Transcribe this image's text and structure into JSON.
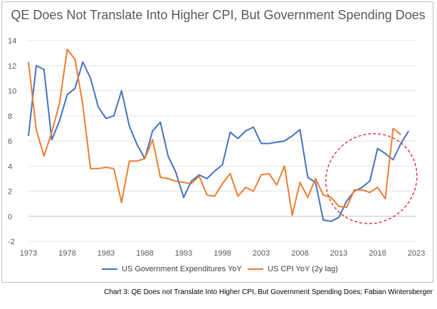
{
  "chart_data": {
    "type": "line",
    "title": "QE Does Not Translate Into Higher CPI, But Government Spending Does",
    "xlabel": "",
    "ylabel": "",
    "xlim": [
      1973,
      2023
    ],
    "ylim": [
      -2,
      14
    ],
    "x_ticks": [
      "1973",
      "1978",
      "1983",
      "1988",
      "1993",
      "1998",
      "2003",
      "2008",
      "2013",
      "2018",
      "2023"
    ],
    "y_ticks": [
      "-2",
      "0",
      "2",
      "4",
      "6",
      "8",
      "10",
      "12",
      "14"
    ],
    "grid": true,
    "legend_position": "bottom",
    "series": [
      {
        "name": "US Government Expenditures YoY",
        "color": "#4472c4",
        "x": [
          1973,
          1974,
          1975,
          1976,
          1977,
          1978,
          1979,
          1980,
          1981,
          1982,
          1983,
          1984,
          1985,
          1986,
          1987,
          1988,
          1989,
          1990,
          1991,
          1992,
          1993,
          1994,
          1995,
          1996,
          1997,
          1998,
          1999,
          2000,
          2001,
          2002,
          2003,
          2004,
          2005,
          2006,
          2007,
          2008,
          2009,
          2010,
          2011,
          2012,
          2013,
          2014,
          2015,
          2016,
          2017,
          2018,
          2019,
          2020,
          2021,
          2022
        ],
        "values": [
          6.4,
          12.0,
          11.7,
          6.1,
          7.6,
          9.7,
          10.2,
          12.3,
          11.0,
          8.7,
          7.8,
          8.0,
          10.0,
          7.2,
          5.7,
          4.6,
          6.8,
          7.5,
          4.8,
          3.5,
          1.5,
          2.8,
          3.3,
          3.0,
          3.6,
          4.1,
          6.7,
          6.2,
          6.8,
          7.1,
          5.8,
          5.8,
          5.9,
          6.0,
          6.4,
          6.9,
          3.1,
          2.7,
          -0.3,
          -0.4,
          -0.1,
          1.2,
          2.0,
          2.3,
          2.8,
          5.4,
          5.0,
          4.5,
          5.8,
          6.8
        ]
      },
      {
        "name": "US CPI YoY (2y lag)",
        "color": "#ed7d31",
        "x": [
          1973,
          1974,
          1975,
          1976,
          1977,
          1978,
          1979,
          1980,
          1981,
          1982,
          1983,
          1984,
          1985,
          1986,
          1987,
          1988,
          1989,
          1990,
          1991,
          1992,
          1993,
          1994,
          1995,
          1996,
          1997,
          1998,
          1999,
          2000,
          2001,
          2002,
          2003,
          2004,
          2005,
          2006,
          2007,
          2008,
          2009,
          2010,
          2011,
          2012,
          2013,
          2014,
          2015,
          2016,
          2017,
          2018,
          2019,
          2020,
          2021,
          2022
        ],
        "values": [
          12.3,
          6.9,
          4.8,
          6.7,
          9.0,
          13.3,
          12.5,
          8.9,
          3.8,
          3.8,
          3.9,
          3.8,
          1.1,
          4.4,
          4.4,
          4.6,
          6.1,
          3.1,
          3.0,
          2.8,
          2.7,
          2.6,
          3.2,
          1.7,
          1.6,
          2.6,
          3.4,
          1.6,
          2.3,
          2.0,
          3.3,
          3.4,
          2.5,
          4.0,
          0.1,
          2.7,
          1.5,
          3.0,
          1.7,
          1.5,
          0.8,
          0.7,
          2.1,
          2.1,
          1.9,
          2.3,
          1.4,
          7.0,
          6.5,
          null
        ]
      }
    ],
    "annotations": [
      {
        "type": "ellipse",
        "style": "dashed",
        "color": "#e01e1e",
        "center_x": 2017.2,
        "center_y": 3.0,
        "rx_years": 6.0,
        "ry_units": 3.5,
        "tilt_deg": -38
      }
    ]
  },
  "caption": "Chart 3: QE Does not Translate Into Higher CPI, But Government Spending Does; Fabian Wintersberger"
}
